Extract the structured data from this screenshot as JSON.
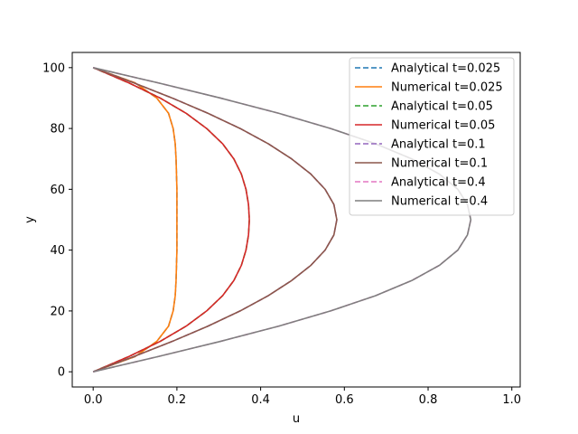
{
  "chart_data": {
    "type": "line",
    "xlabel": "u",
    "ylabel": "y",
    "xlim": [
      -0.05,
      1.02
    ],
    "ylim": [
      -5,
      105
    ],
    "x_ticks": [
      "0.0",
      "0.2",
      "0.4",
      "0.6",
      "0.8",
      "1.0"
    ],
    "y_ticks": [
      "0",
      "20",
      "40",
      "60",
      "80",
      "100"
    ],
    "legend_position": "top-right",
    "grid": false,
    "y": [
      0,
      5,
      10,
      15,
      20,
      25,
      30,
      35,
      40,
      45,
      50,
      55,
      60,
      65,
      70,
      75,
      80,
      85,
      90,
      95,
      100
    ],
    "series": [
      {
        "name": "Analytical t=0.025",
        "color": "#1f77b4",
        "dashed": true,
        "values": [
          0,
          0.1,
          0.152,
          0.18,
          0.191,
          0.196,
          0.198,
          0.199,
          0.2,
          0.2,
          0.2,
          0.2,
          0.2,
          0.199,
          0.198,
          0.196,
          0.191,
          0.18,
          0.152,
          0.1,
          0
        ]
      },
      {
        "name": "Numerical t=0.025",
        "color": "#ff7f0e",
        "dashed": false,
        "values": [
          0,
          0.1,
          0.152,
          0.18,
          0.191,
          0.196,
          0.198,
          0.199,
          0.2,
          0.2,
          0.2,
          0.2,
          0.2,
          0.199,
          0.198,
          0.196,
          0.191,
          0.18,
          0.152,
          0.1,
          0
        ]
      },
      {
        "name": "Analytical t=0.05",
        "color": "#2ca02c",
        "dashed": true,
        "values": [
          0,
          0.085,
          0.16,
          0.222,
          0.271,
          0.309,
          0.336,
          0.354,
          0.365,
          0.371,
          0.373,
          0.371,
          0.365,
          0.354,
          0.336,
          0.309,
          0.271,
          0.222,
          0.16,
          0.085,
          0
        ]
      },
      {
        "name": "Numerical t=0.05",
        "color": "#d62728",
        "dashed": false,
        "values": [
          0,
          0.085,
          0.16,
          0.222,
          0.271,
          0.309,
          0.336,
          0.354,
          0.365,
          0.371,
          0.373,
          0.371,
          0.365,
          0.354,
          0.336,
          0.309,
          0.271,
          0.222,
          0.16,
          0.085,
          0
        ]
      },
      {
        "name": "Analytical t=0.1",
        "color": "#9467bd",
        "dashed": true,
        "values": [
          0,
          0.097,
          0.189,
          0.274,
          0.351,
          0.418,
          0.474,
          0.52,
          0.554,
          0.575,
          0.582,
          0.575,
          0.554,
          0.52,
          0.474,
          0.418,
          0.351,
          0.274,
          0.189,
          0.097,
          0
        ]
      },
      {
        "name": "Numerical t=0.1",
        "color": "#8c564b",
        "dashed": false,
        "values": [
          0,
          0.097,
          0.189,
          0.274,
          0.351,
          0.418,
          0.474,
          0.52,
          0.554,
          0.575,
          0.582,
          0.575,
          0.554,
          0.52,
          0.474,
          0.418,
          0.351,
          0.274,
          0.189,
          0.097,
          0
        ]
      },
      {
        "name": "Analytical t=0.4",
        "color": "#e377c2",
        "dashed": true,
        "values": [
          0,
          0.155,
          0.304,
          0.443,
          0.567,
          0.674,
          0.761,
          0.827,
          0.871,
          0.894,
          0.902,
          0.894,
          0.871,
          0.827,
          0.761,
          0.674,
          0.567,
          0.443,
          0.304,
          0.155,
          0
        ]
      },
      {
        "name": "Numerical t=0.4",
        "color": "#7f7f7f",
        "dashed": false,
        "values": [
          0,
          0.155,
          0.304,
          0.443,
          0.567,
          0.674,
          0.761,
          0.827,
          0.871,
          0.894,
          0.902,
          0.894,
          0.871,
          0.827,
          0.761,
          0.674,
          0.567,
          0.443,
          0.304,
          0.155,
          0
        ]
      }
    ]
  }
}
